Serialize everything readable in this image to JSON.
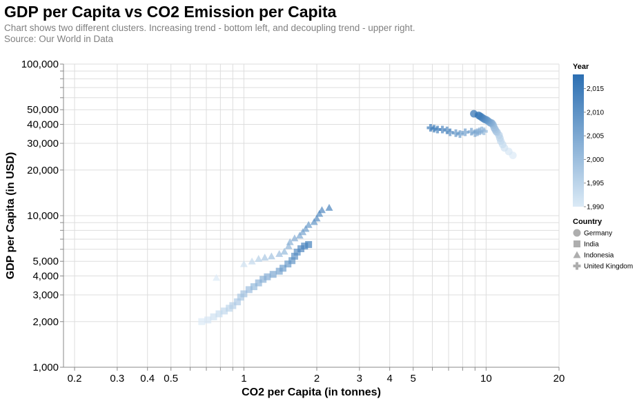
{
  "chart_data": {
    "type": "scatter",
    "title": "GDP per Capita vs CO2 Emission per Capita",
    "subtitle": [
      "Chart shows two different clusters. Increasing trend - bottom left, and decoupling trend - upper right.",
      "Source: Our World in Data"
    ],
    "xlabel": "CO2 per Capita (in tonnes)",
    "ylabel": "GDP per Capita (in USD)",
    "x_scale": "log",
    "y_scale": "log",
    "xlim": [
      0.18,
      20
    ],
    "ylim": [
      1000,
      100000
    ],
    "grid": true,
    "x_ticks": [
      {
        "v": 0.2,
        "label": "0.2"
      },
      {
        "v": 0.3,
        "label": "0.3"
      },
      {
        "v": 0.4,
        "label": "0.4"
      },
      {
        "v": 0.5,
        "label": "0.5"
      },
      {
        "v": 1,
        "label": "1"
      },
      {
        "v": 2,
        "label": "2"
      },
      {
        "v": 3,
        "label": "3"
      },
      {
        "v": 4,
        "label": "4"
      },
      {
        "v": 5,
        "label": "5"
      },
      {
        "v": 10,
        "label": "10"
      },
      {
        "v": 20,
        "label": "20"
      }
    ],
    "x_minor": [
      0.6,
      0.7,
      0.8,
      0.9,
      6,
      7,
      8,
      9
    ],
    "y_ticks": [
      {
        "v": 1000,
        "label": "1,000"
      },
      {
        "v": 2000,
        "label": "2,000"
      },
      {
        "v": 3000,
        "label": "3,000"
      },
      {
        "v": 4000,
        "label": "4,000"
      },
      {
        "v": 5000,
        "label": "5,000"
      },
      {
        "v": 10000,
        "label": "10,000"
      },
      {
        "v": 20000,
        "label": "20,000"
      },
      {
        "v": 30000,
        "label": "30,000"
      },
      {
        "v": 40000,
        "label": "40,000"
      },
      {
        "v": 50000,
        "label": "50,000"
      },
      {
        "v": 100000,
        "label": "100,000"
      }
    ],
    "y_minor": [
      6000,
      7000,
      8000,
      9000,
      60000,
      70000,
      80000,
      90000
    ],
    "color_encoding": {
      "field": "Year",
      "domain": [
        1990,
        2018
      ],
      "ticks": [
        {
          "v": 2015,
          "label": "2,015"
        },
        {
          "v": 2010,
          "label": "2,010"
        },
        {
          "v": 2005,
          "label": "2,005"
        },
        {
          "v": 2000,
          "label": "2,000"
        },
        {
          "v": 1995,
          "label": "1,995"
        },
        {
          "v": 1990,
          "label": "1,990"
        }
      ],
      "color_low": "#dbeaf6",
      "color_high": "#2c6fb2"
    },
    "legend": {
      "placement": "right",
      "color_title": "Year",
      "shape_title": "Country"
    },
    "series": [
      {
        "name": "Germany",
        "shape": "circle",
        "x": [
          12.9,
          12.4,
          11.9,
          11.7,
          11.5,
          11.4,
          11.3,
          11.1,
          11.0,
          10.9,
          10.8,
          10.7,
          10.6,
          10.5,
          10.4,
          10.3,
          10.2,
          10.1,
          10.0,
          9.9,
          9.8,
          9.7,
          9.6,
          9.5,
          9.4,
          9.3,
          8.9
        ],
        "y": [
          25000,
          26500,
          28000,
          29500,
          31000,
          32500,
          34000,
          35500,
          36000,
          37000,
          38000,
          39500,
          40500,
          41000,
          41000,
          41500,
          42000,
          42500,
          43000,
          43000,
          43500,
          44000,
          44500,
          45000,
          45500,
          46000,
          47000
        ],
        "year": [
          1990,
          1991,
          1992,
          1993,
          1994,
          1995,
          1996,
          1997,
          1998,
          1999,
          2000,
          2001,
          2002,
          2003,
          2004,
          2005,
          2006,
          2007,
          2008,
          2009,
          2010,
          2011,
          2012,
          2013,
          2014,
          2015,
          2018
        ]
      },
      {
        "name": "India",
        "shape": "square",
        "x": [
          0.67,
          0.71,
          0.75,
          0.79,
          0.83,
          0.87,
          0.9,
          0.94,
          0.97,
          1.0,
          1.05,
          1.1,
          1.15,
          1.2,
          1.25,
          1.32,
          1.4,
          1.45,
          1.52,
          1.58,
          1.62,
          1.66,
          1.72,
          1.78,
          1.85
        ],
        "y": [
          2000,
          2050,
          2150,
          2250,
          2350,
          2450,
          2550,
          2700,
          2900,
          3050,
          3250,
          3400,
          3600,
          3800,
          3950,
          4100,
          4300,
          4500,
          4800,
          5050,
          5400,
          5750,
          6050,
          6300,
          6450
        ],
        "year": [
          1990,
          1991,
          1992,
          1993,
          1994,
          1995,
          1996,
          1997,
          1998,
          1999,
          2000,
          2001,
          2002,
          2003,
          2004,
          2005,
          2006,
          2007,
          2008,
          2009,
          2010,
          2011,
          2012,
          2013,
          2014
        ]
      },
      {
        "name": "Indonesia",
        "shape": "triangle",
        "x": [
          0.77,
          1.0,
          1.08,
          1.15,
          1.22,
          1.3,
          1.4,
          1.47,
          1.53,
          1.55,
          1.62,
          1.7,
          1.75,
          1.8,
          1.85,
          1.95,
          2.0,
          2.05,
          2.1,
          2.25
        ],
        "y": [
          3900,
          4800,
          5000,
          5200,
          5300,
          5400,
          5600,
          5800,
          6300,
          6700,
          7100,
          7400,
          7800,
          8200,
          8700,
          9100,
          9600,
          10300,
          10900,
          11300
        ],
        "year": [
          1990,
          1992,
          1994,
          1996,
          1998,
          1999,
          2000,
          2001,
          2002,
          2003,
          2004,
          2005,
          2006,
          2007,
          2008,
          2009,
          2010,
          2011,
          2012,
          2013
        ]
      },
      {
        "name": "United Kingdom",
        "shape": "cross",
        "x": [
          9.8,
          9.6,
          9.4,
          9.2,
          9.0,
          8.7,
          8.2,
          7.8,
          7.5,
          7.1,
          6.9,
          6.6,
          6.3,
          6.1,
          5.9
        ],
        "y": [
          36000,
          36500,
          36000,
          35500,
          35000,
          35800,
          35500,
          34500,
          35000,
          35500,
          36500,
          37000,
          37000,
          37500,
          38000
        ],
        "year": [
          2001,
          2002,
          2003,
          2004,
          2005,
          2006,
          2007,
          2008,
          2009,
          2010,
          2011,
          2012,
          2013,
          2014,
          2015
        ]
      }
    ]
  }
}
